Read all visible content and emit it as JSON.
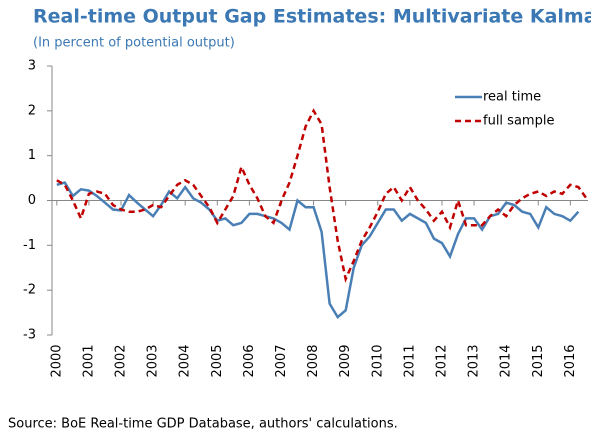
{
  "chart_data": {
    "type": "line",
    "title": "Real-time Output Gap Estimates: Multivariate Kalman",
    "subtitle": "(In percent of potential output)",
    "source": "Source: BoE Real-time GDP Database, authors' calculations.",
    "x": [
      2000,
      2000.25,
      2000.5,
      2000.75,
      2001,
      2001.25,
      2001.5,
      2001.75,
      2002,
      2002.25,
      2002.5,
      2002.75,
      2003,
      2003.25,
      2003.5,
      2003.75,
      2004,
      2004.25,
      2004.5,
      2004.75,
      2005,
      2005.25,
      2005.5,
      2005.75,
      2006,
      2006.25,
      2006.5,
      2006.75,
      2007,
      2007.25,
      2007.5,
      2007.75,
      2008,
      2008.25,
      2008.5,
      2008.75,
      2009,
      2009.25,
      2009.5,
      2009.75,
      2010,
      2010.25,
      2010.5,
      2010.75,
      2011,
      2011.25,
      2011.5,
      2011.75,
      2012,
      2012.25,
      2012.5,
      2012.75,
      2013,
      2013.25,
      2013.5,
      2013.75,
      2014,
      2014.25,
      2014.5,
      2014.75,
      2015,
      2015.25,
      2015.5,
      2015.75,
      2016,
      2016.25,
      2016.5
    ],
    "series": [
      {
        "name": "real time",
        "color": "#4a7fb5",
        "dash": false,
        "values": [
          0.35,
          0.4,
          0.1,
          0.25,
          0.22,
          0.1,
          -0.05,
          -0.2,
          -0.22,
          0.12,
          -0.05,
          -0.2,
          -0.35,
          -0.1,
          0.2,
          0.05,
          0.3,
          0.05,
          -0.05,
          -0.2,
          -0.45,
          -0.4,
          -0.55,
          -0.5,
          -0.3,
          -0.3,
          -0.35,
          -0.4,
          -0.5,
          -0.65,
          0.0,
          -0.15,
          -0.15,
          -0.7,
          -2.3,
          -2.6,
          -2.45,
          -1.5,
          -1.0,
          -0.8,
          -0.5,
          -0.2,
          -0.2,
          -0.45,
          -0.3,
          -0.4,
          -0.5,
          -0.85,
          -0.95,
          -1.25,
          -0.75,
          -0.4,
          -0.4,
          -0.65,
          -0.35,
          -0.3,
          -0.05,
          -0.1,
          -0.25,
          -0.3,
          -0.6,
          -0.15,
          -0.3,
          -0.35,
          -0.45,
          -0.25,
          null
        ]
      },
      {
        "name": "full sample",
        "color": "#c00000",
        "dash": true,
        "values": [
          0.45,
          0.35,
          0.0,
          -0.4,
          0.15,
          0.2,
          0.15,
          -0.1,
          -0.2,
          -0.25,
          -0.25,
          -0.2,
          -0.1,
          -0.15,
          0.1,
          0.35,
          0.45,
          0.35,
          0.1,
          -0.15,
          -0.5,
          -0.2,
          0.1,
          0.75,
          0.35,
          0.05,
          -0.35,
          -0.5,
          0.0,
          0.4,
          1.0,
          1.65,
          2.0,
          1.7,
          0.3,
          -0.9,
          -1.75,
          -1.35,
          -0.9,
          -0.6,
          -0.25,
          0.15,
          0.3,
          0.0,
          0.3,
          0.0,
          -0.2,
          -0.45,
          -0.25,
          -0.6,
          0.0,
          -0.55,
          -0.55,
          -0.55,
          -0.35,
          -0.2,
          -0.35,
          -0.1,
          0.05,
          0.15,
          0.2,
          0.1,
          0.2,
          0.15,
          0.35,
          0.3,
          0.05
        ]
      }
    ],
    "xlim": [
      1999.85,
      2016.55
    ],
    "xticks": [
      2000,
      2001,
      2002,
      2003,
      2004,
      2005,
      2006,
      2007,
      2008,
      2009,
      2010,
      2011,
      2012,
      2013,
      2014,
      2015,
      2016
    ],
    "ylim": [
      -3,
      3
    ],
    "yticks": [
      -3,
      -2,
      -1,
      0,
      1,
      2,
      3
    ],
    "legend": "top-right"
  }
}
